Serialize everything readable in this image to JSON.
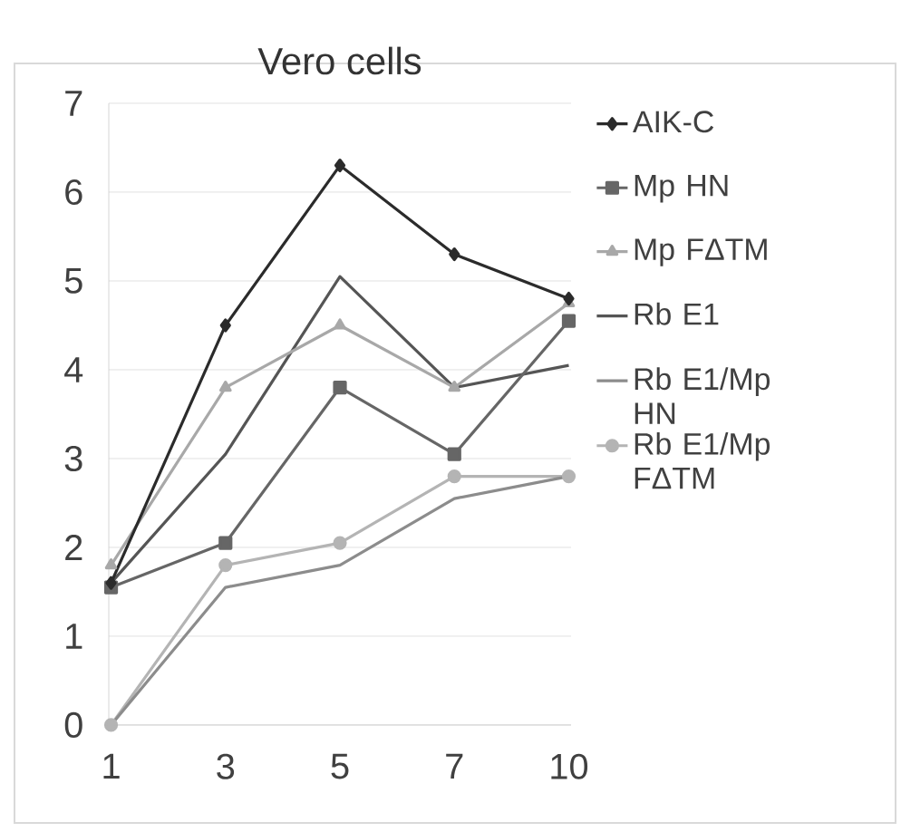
{
  "chart_data": {
    "type": "line",
    "title": "Vero cells",
    "categories": [
      "1",
      "3",
      "5",
      "7",
      "10"
    ],
    "series": [
      {
        "name": "AIK-C",
        "color": "#2b2b2b",
        "marker": "diamond",
        "values": [
          1.6,
          4.5,
          6.3,
          5.3,
          4.8
        ]
      },
      {
        "name": "Mp HN",
        "color": "#666666",
        "marker": "square",
        "values": [
          1.55,
          2.05,
          3.8,
          3.05,
          4.55
        ]
      },
      {
        "name": "Mp FΔTM",
        "color": "#a8a8a8",
        "marker": "triangle",
        "values": [
          1.8,
          3.8,
          4.5,
          3.8,
          4.75
        ]
      },
      {
        "name": "Rb E1",
        "color": "#555555",
        "marker": "none",
        "values": [
          1.6,
          3.05,
          5.05,
          3.8,
          4.05
        ]
      },
      {
        "name": "Rb E1/Mp HN",
        "color": "#8c8c8c",
        "marker": "none",
        "values": [
          0,
          1.55,
          1.8,
          2.55,
          2.8
        ]
      },
      {
        "name": "Rb E1/Mp FΔTM",
        "color": "#b4b4b4",
        "marker": "circle",
        "values": [
          0,
          1.8,
          2.05,
          2.8,
          2.8
        ]
      }
    ],
    "ylim": [
      0,
      7
    ],
    "yticks": [
      0,
      1,
      2,
      3,
      4,
      5,
      6,
      7
    ],
    "grid": "y",
    "legend": "right",
    "line_style": "solid"
  }
}
